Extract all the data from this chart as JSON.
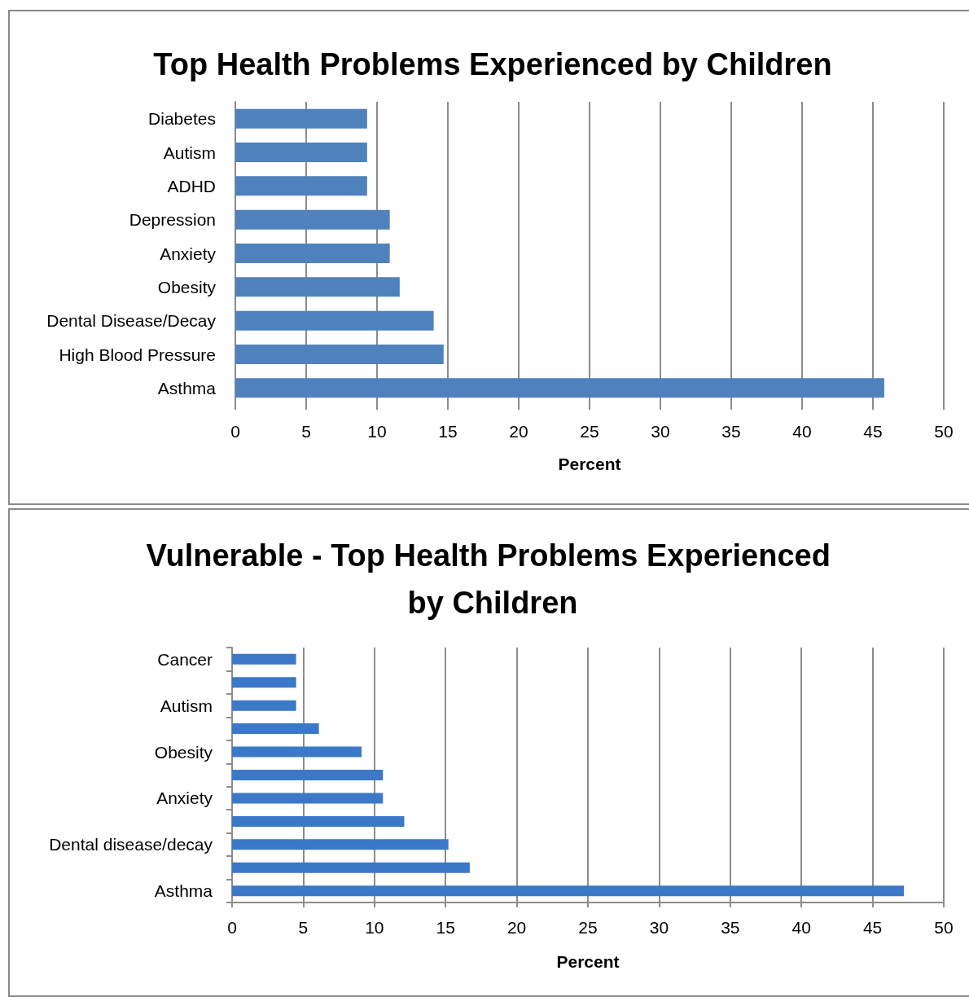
{
  "chart_data": [
    {
      "type": "bar",
      "orientation": "horizontal",
      "title": "Top Health Problems Experienced by Children",
      "xlabel": "Percent",
      "categories": [
        "Diabetes",
        "Autism",
        "ADHD",
        "Depression",
        "Anxiety",
        "Obesity",
        "Dental Disease/Decay",
        "High Blood Pressure",
        "Asthma"
      ],
      "values": [
        9.3,
        9.3,
        9.3,
        10.9,
        10.9,
        11.6,
        14.0,
        14.7,
        45.8
      ],
      "color": "#4f81bd",
      "xlim": [
        0,
        50
      ],
      "xticks": [
        0,
        5,
        10,
        15,
        20,
        25,
        30,
        35,
        40,
        45,
        50
      ],
      "grid": "x"
    },
    {
      "type": "bar",
      "orientation": "horizontal",
      "title": "Vulnerable - Top Health Problems Experienced by Children",
      "xlabel": "Percent",
      "categories": [
        "Cancer",
        null,
        "Autism",
        null,
        "Obesity",
        null,
        "Anxiety",
        null,
        "Dental disease/decay",
        null,
        "Asthma"
      ],
      "values": [
        4.5,
        4.5,
        4.5,
        6.1,
        9.1,
        10.6,
        10.6,
        12.1,
        15.2,
        16.7,
        47.2
      ],
      "color": "#3b78c8",
      "xlim": [
        0,
        50
      ],
      "xticks": [
        0,
        5,
        10,
        15,
        20,
        25,
        30,
        35,
        40,
        45,
        50
      ],
      "grid": "x"
    }
  ]
}
